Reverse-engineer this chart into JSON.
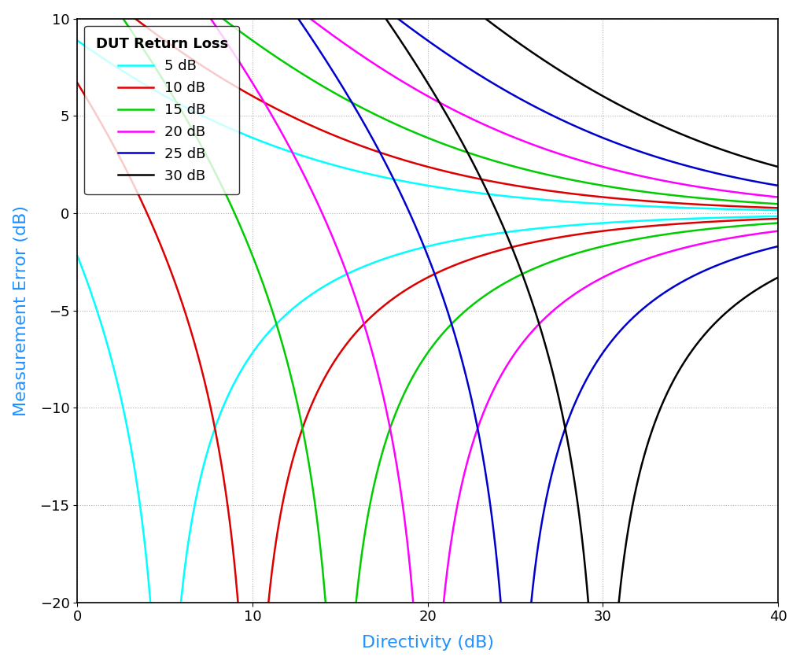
{
  "title": "",
  "xlabel": "Directivity (dB)",
  "ylabel": "Measurement Error (dB)",
  "legend_title": "DUT Return Loss",
  "xlabel_color": "#1e90ff",
  "ylabel_color": "#1e90ff",
  "xlim": [
    0,
    40
  ],
  "ylim": [
    -20,
    10
  ],
  "xticks": [
    0,
    10,
    20,
    30,
    40
  ],
  "yticks": [
    -20,
    -15,
    -10,
    -5,
    0,
    5,
    10
  ],
  "dut_return_losses": [
    5,
    10,
    15,
    20,
    25,
    30
  ],
  "colors": [
    "#00ffff",
    "#dd0000",
    "#00cc00",
    "#ff00ff",
    "#0000cc",
    "#000000"
  ],
  "legend_labels": [
    "5 dB",
    "10 dB",
    "15 dB",
    "20 dB",
    "25 dB",
    "30 dB"
  ],
  "linewidth": 1.8,
  "background_color": "#ffffff",
  "grid_color": "#aaaaaa"
}
